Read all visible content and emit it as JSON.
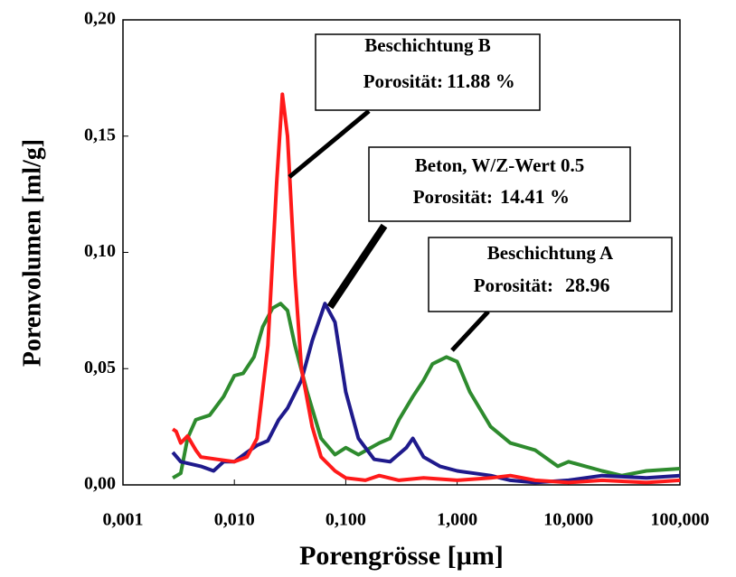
{
  "chart_data": {
    "type": "line",
    "x_scale": "log",
    "xlabel": "Porengrösse [µm]",
    "ylabel": "Porenvolumen [ml/g]",
    "xlim": [
      0.001,
      100
    ],
    "ylim": [
      0,
      0.2
    ],
    "xticks": [
      {
        "value": 0.001,
        "label": "0,001"
      },
      {
        "value": 0.01,
        "label": "0,010"
      },
      {
        "value": 0.1,
        "label": "0,100"
      },
      {
        "value": 1,
        "label": "1,000"
      },
      {
        "value": 10,
        "label": "10,000"
      },
      {
        "value": 100,
        "label": "100,000"
      }
    ],
    "yticks": [
      {
        "value": 0,
        "label": "0,00"
      },
      {
        "value": 0.05,
        "label": "0,05"
      },
      {
        "value": 0.1,
        "label": "0,10"
      },
      {
        "value": 0.15,
        "label": "0,15"
      },
      {
        "value": 0.2,
        "label": "0,20"
      }
    ],
    "series": [
      {
        "color": "#2e8b2e",
        "x": [
          0.0028,
          0.0033,
          0.0038,
          0.0045,
          0.006,
          0.008,
          0.01,
          0.012,
          0.015,
          0.018,
          0.022,
          0.026,
          0.03,
          0.035,
          0.045,
          0.06,
          0.08,
          0.1,
          0.13,
          0.2,
          0.25,
          0.3,
          0.4,
          0.5,
          0.6,
          0.8,
          1,
          1.3,
          2,
          3,
          5,
          8,
          10,
          20,
          30,
          50,
          100
        ],
        "values": [
          0.003,
          0.005,
          0.02,
          0.028,
          0.03,
          0.038,
          0.047,
          0.048,
          0.055,
          0.068,
          0.076,
          0.078,
          0.075,
          0.06,
          0.04,
          0.02,
          0.013,
          0.016,
          0.013,
          0.018,
          0.02,
          0.028,
          0.038,
          0.045,
          0.052,
          0.055,
          0.053,
          0.04,
          0.025,
          0.018,
          0.015,
          0.008,
          0.01,
          0.006,
          0.004,
          0.006,
          0.007
        ]
      },
      {
        "color": "#1f1a8c",
        "x": [
          0.0028,
          0.0033,
          0.005,
          0.0065,
          0.008,
          0.01,
          0.013,
          0.016,
          0.02,
          0.025,
          0.03,
          0.04,
          0.05,
          0.065,
          0.08,
          0.1,
          0.13,
          0.18,
          0.25,
          0.35,
          0.4,
          0.5,
          0.7,
          1,
          2,
          3,
          5,
          10,
          20,
          50,
          100
        ],
        "values": [
          0.014,
          0.01,
          0.008,
          0.006,
          0.01,
          0.01,
          0.014,
          0.017,
          0.019,
          0.028,
          0.033,
          0.045,
          0.062,
          0.078,
          0.07,
          0.04,
          0.02,
          0.011,
          0.01,
          0.016,
          0.02,
          0.012,
          0.008,
          0.006,
          0.004,
          0.002,
          0.001,
          0.002,
          0.004,
          0.003,
          0.004
        ]
      },
      {
        "color": "#ff1a1a",
        "x": [
          0.0028,
          0.003,
          0.0033,
          0.0038,
          0.0045,
          0.005,
          0.007,
          0.01,
          0.013,
          0.016,
          0.02,
          0.024,
          0.027,
          0.03,
          0.035,
          0.04,
          0.05,
          0.06,
          0.08,
          0.1,
          0.15,
          0.2,
          0.3,
          0.5,
          1,
          2,
          3,
          5,
          10,
          20,
          50,
          100
        ],
        "values": [
          0.024,
          0.023,
          0.018,
          0.021,
          0.015,
          0.012,
          0.011,
          0.01,
          0.012,
          0.02,
          0.06,
          0.13,
          0.168,
          0.15,
          0.09,
          0.05,
          0.025,
          0.012,
          0.006,
          0.003,
          0.002,
          0.004,
          0.002,
          0.003,
          0.002,
          0.003,
          0.004,
          0.002,
          0.001,
          0.002,
          0.001,
          0.002
        ]
      }
    ],
    "annotations": [
      {
        "title": "Beschichtung B",
        "label": "Porosität:",
        "value": "11.88 %"
      },
      {
        "title": "Beton, W/Z-Wert 0.5",
        "label": "Porosität:",
        "value": "14.41 %"
      },
      {
        "title": "Beschichtung A",
        "label": "Porosität:",
        "value": "28.96"
      }
    ]
  }
}
